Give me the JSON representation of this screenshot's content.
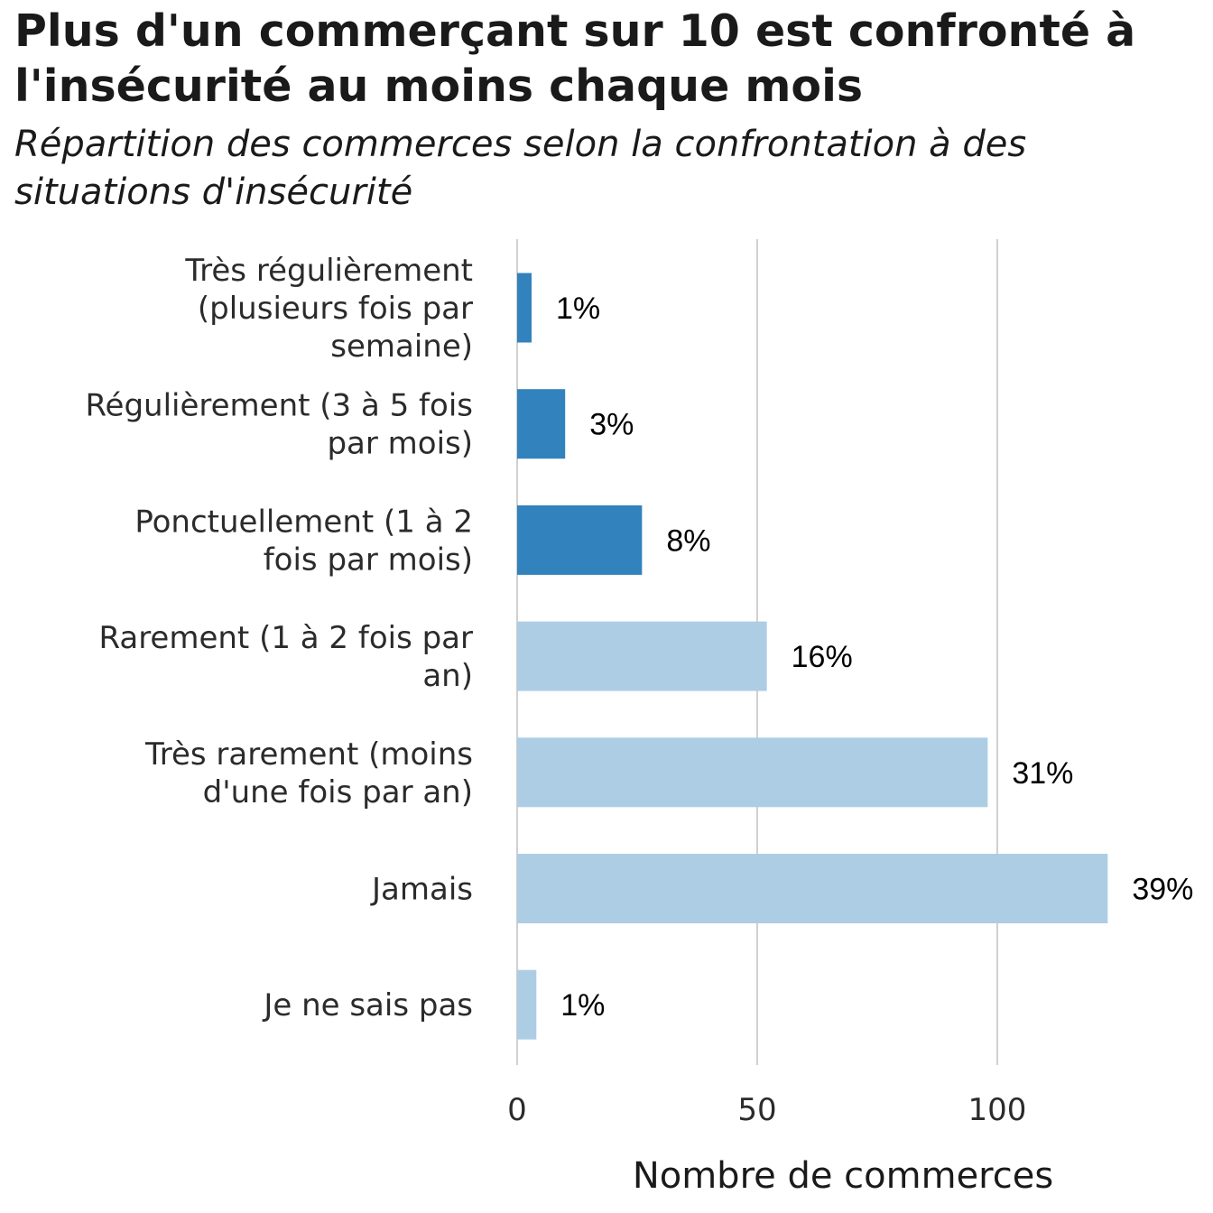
{
  "chart_data": {
    "type": "bar",
    "orientation": "horizontal",
    "title": "Plus d'un commerçant sur 10 est confronté à l'insécurité au moins chaque mois",
    "subtitle": "Répartition des commerces selon la confrontation à des situations d'insécurité",
    "xlabel": "Nombre de commerces",
    "ylabel": "",
    "xlim": [
      0,
      125
    ],
    "xticks": [
      0,
      50,
      100
    ],
    "grid": "vertical",
    "categories": [
      [
        "Très régulièrement",
        "(plusieurs fois par",
        "semaine)"
      ],
      [
        "Régulièrement (3 à 5 fois",
        "par mois)"
      ],
      [
        "Ponctuellement (1 à 2",
        "fois par mois)"
      ],
      [
        "Rarement (1 à 2 fois par",
        "an)"
      ],
      [
        "Très rarement (moins",
        "d'une fois par an)"
      ],
      [
        "Jamais"
      ],
      [
        "Je ne sais pas"
      ]
    ],
    "values": [
      3,
      10,
      26,
      52,
      98,
      123,
      4
    ],
    "data_labels": [
      "1%",
      "3%",
      "8%",
      "16%",
      "31%",
      "39%",
      "1%"
    ],
    "bar_colors": [
      "#3182bd",
      "#3182bd",
      "#3182bd",
      "#adcde4",
      "#adcde4",
      "#adcde4",
      "#adcde4"
    ],
    "colors": {
      "dark_blue": "#3182bd",
      "light_blue": "#adcde4",
      "gridline": "#d0d0d0"
    }
  }
}
